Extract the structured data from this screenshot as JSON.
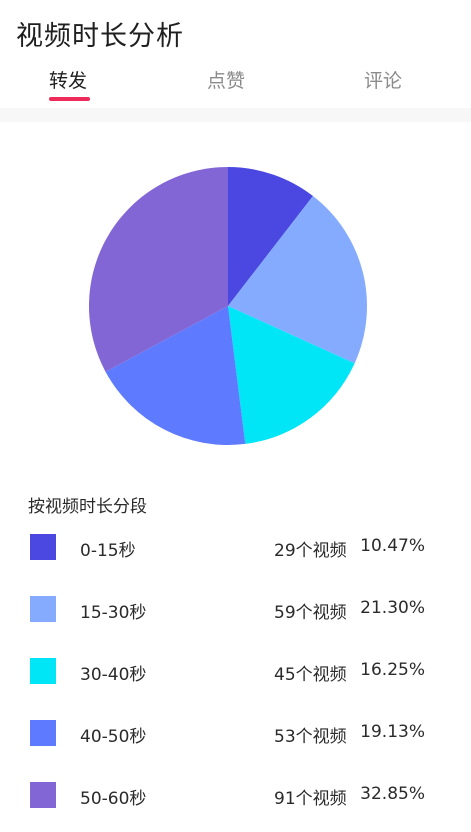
{
  "header": {
    "title": "视频时长分析"
  },
  "tabs": [
    {
      "label": "转发",
      "active": true
    },
    {
      "label": "点赞",
      "active": false
    },
    {
      "label": "评论",
      "active": false
    }
  ],
  "legend_title": "按视频时长分段",
  "colors": {
    "accent": "#ee2a5a",
    "series": [
      "#4a48e0",
      "#85abff",
      "#00e6f7",
      "#5e7aff",
      "#8366d6"
    ]
  },
  "chart_data": {
    "type": "pie",
    "categories": [
      "0-15秒",
      "15-30秒",
      "30-40秒",
      "40-50秒",
      "50-60秒"
    ],
    "values": [
      29,
      59,
      45,
      53,
      91
    ],
    "percent_labels": [
      "10.47%",
      "21.30%",
      "16.25%",
      "19.13%",
      "32.85%"
    ],
    "count_labels": [
      "29个视频",
      "59个视频",
      "45个视频",
      "53个视频",
      "91个视频"
    ],
    "start_angle_deg": 0,
    "direction": "clockwise"
  }
}
